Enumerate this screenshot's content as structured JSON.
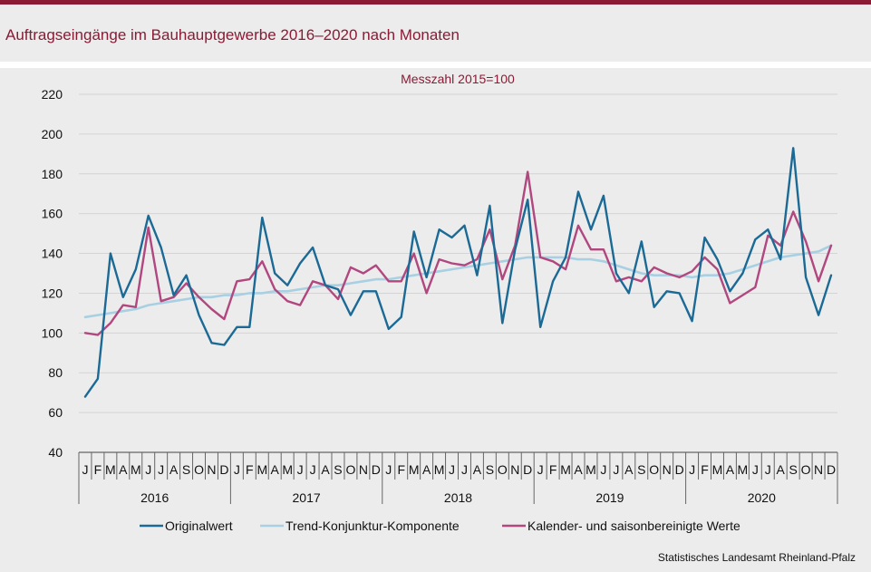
{
  "title": "Auftragseingänge im Bauhauptgewerbe 2016–2020 nach Monaten",
  "source": "Statistisches Landesamt Rheinland-Pfalz",
  "colors": {
    "brand": "#8b1a35",
    "original": "#1b6a96",
    "trend": "#a8d0e2",
    "adjusted": "#b1477f",
    "grid": "#d4d4d4",
    "background": "#ececec"
  },
  "chart_data": {
    "type": "line",
    "subtitle": "Messzahl 2015=100",
    "ylim": [
      40,
      220
    ],
    "yticks": [
      40,
      60,
      80,
      100,
      120,
      140,
      160,
      180,
      200,
      220
    ],
    "grid": true,
    "legend": "bottom",
    "months": [
      "J",
      "F",
      "M",
      "A",
      "M",
      "J",
      "J",
      "A",
      "S",
      "O",
      "N",
      "D"
    ],
    "years": [
      "2016",
      "2017",
      "2018",
      "2019",
      "2020"
    ],
    "series": [
      {
        "name": "Originalwert",
        "values": [
          68,
          77,
          140,
          118,
          132,
          159,
          143,
          119,
          129,
          109,
          95,
          94,
          103,
          103,
          158,
          130,
          124,
          135,
          143,
          124,
          122,
          109,
          121,
          121,
          102,
          108,
          151,
          128,
          152,
          148,
          154,
          129,
          164,
          105,
          142,
          167,
          103,
          126,
          138,
          171,
          152,
          169,
          130,
          120,
          146,
          113,
          121,
          120,
          106,
          148,
          137,
          121,
          130,
          147,
          152,
          137,
          193,
          128,
          109,
          129
        ]
      },
      {
        "name": "Trend-Konjunktur-Komponente",
        "values": [
          108,
          109,
          110,
          111,
          112,
          114,
          115,
          116,
          117,
          118,
          118,
          119,
          119,
          120,
          120,
          121,
          121,
          122,
          123,
          124,
          124,
          125,
          126,
          127,
          127,
          128,
          129,
          130,
          131,
          132,
          133,
          134,
          135,
          136,
          137,
          138,
          138,
          138,
          138,
          137,
          137,
          136,
          134,
          132,
          130,
          129,
          129,
          129,
          128,
          129,
          129,
          130,
          132,
          134,
          136,
          138,
          139,
          140,
          141,
          144
        ]
      },
      {
        "name": "Kalender- und saisonbereinigte Werte",
        "values": [
          100,
          99,
          105,
          114,
          113,
          153,
          116,
          118,
          125,
          118,
          112,
          107,
          126,
          127,
          136,
          122,
          116,
          114,
          126,
          124,
          117,
          133,
          130,
          134,
          126,
          126,
          140,
          120,
          137,
          135,
          134,
          137,
          152,
          127,
          144,
          181,
          138,
          136,
          132,
          154,
          142,
          142,
          126,
          128,
          126,
          133,
          130,
          128,
          131,
          138,
          132,
          115,
          119,
          123,
          149,
          144,
          161,
          146,
          126,
          144
        ]
      }
    ]
  }
}
